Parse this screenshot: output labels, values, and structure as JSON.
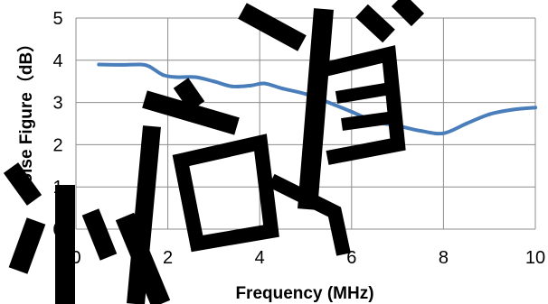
{
  "chart_data": {
    "type": "line",
    "title": "",
    "xlabel": "Frequency (MHz)",
    "ylabel": "Noise Figure（dB）",
    "xlim": [
      0,
      10
    ],
    "ylim": [
      0,
      5
    ],
    "x_ticks": [
      "0",
      "2",
      "4",
      "6",
      "8",
      "10"
    ],
    "y_ticks": [
      "0",
      "1",
      "2",
      "3",
      "4",
      "5"
    ],
    "grid": true,
    "legend": "none",
    "series": [
      {
        "color": "#4a7ebb",
        "points": [
          [
            0.5,
            3.9
          ],
          [
            1.0,
            3.89
          ],
          [
            1.4,
            3.9
          ],
          [
            1.6,
            3.85
          ],
          [
            1.9,
            3.65
          ],
          [
            2.2,
            3.6
          ],
          [
            2.6,
            3.6
          ],
          [
            3.0,
            3.5
          ],
          [
            3.4,
            3.38
          ],
          [
            3.8,
            3.4
          ],
          [
            4.1,
            3.45
          ],
          [
            4.5,
            3.33
          ],
          [
            5.0,
            3.2
          ],
          [
            5.5,
            3.0
          ],
          [
            6.0,
            2.78
          ],
          [
            6.5,
            2.55
          ],
          [
            7.0,
            2.45
          ],
          [
            7.5,
            2.33
          ],
          [
            8.0,
            2.27
          ],
          [
            8.5,
            2.5
          ],
          [
            9.0,
            2.72
          ],
          [
            9.5,
            2.83
          ],
          [
            10.0,
            2.88
          ]
        ]
      }
    ]
  }
}
